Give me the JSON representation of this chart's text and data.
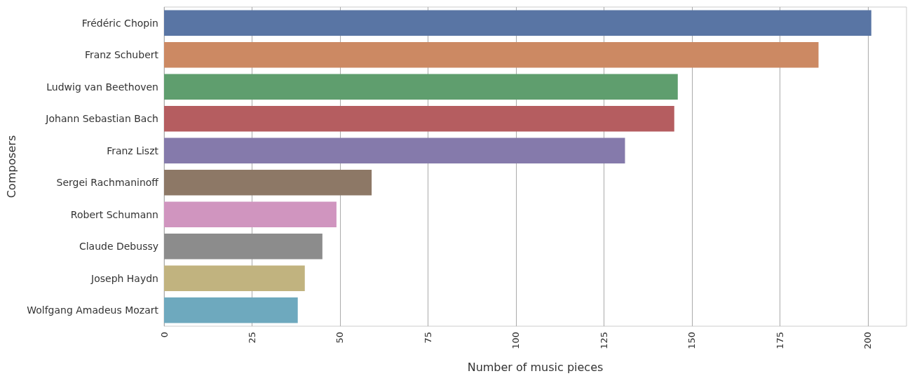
{
  "chart_data": {
    "type": "bar",
    "orientation": "horizontal",
    "xlabel": "Number of music pieces",
    "ylabel": "Composers",
    "categories": [
      "Frédéric Chopin",
      "Franz Schubert",
      "Ludwig van Beethoven",
      "Johann Sebastian Bach",
      "Franz Liszt",
      "Sergei Rachmaninoff",
      "Robert Schumann",
      "Claude Debussy",
      "Joseph Haydn",
      "Wolfgang Amadeus Mozart"
    ],
    "values": [
      201,
      186,
      146,
      145,
      131,
      59,
      49,
      45,
      40,
      38
    ],
    "colors": [
      "#5975a4",
      "#cc8963",
      "#5f9e6e",
      "#b55d60",
      "#857aab",
      "#8d7866",
      "#d095bf",
      "#8c8c8c",
      "#c1b37f",
      "#6ea9be"
    ],
    "xlim": [
      0,
      211
    ],
    "xticks": [
      0,
      25,
      50,
      75,
      100,
      125,
      150,
      175,
      200
    ],
    "grid": "x"
  }
}
